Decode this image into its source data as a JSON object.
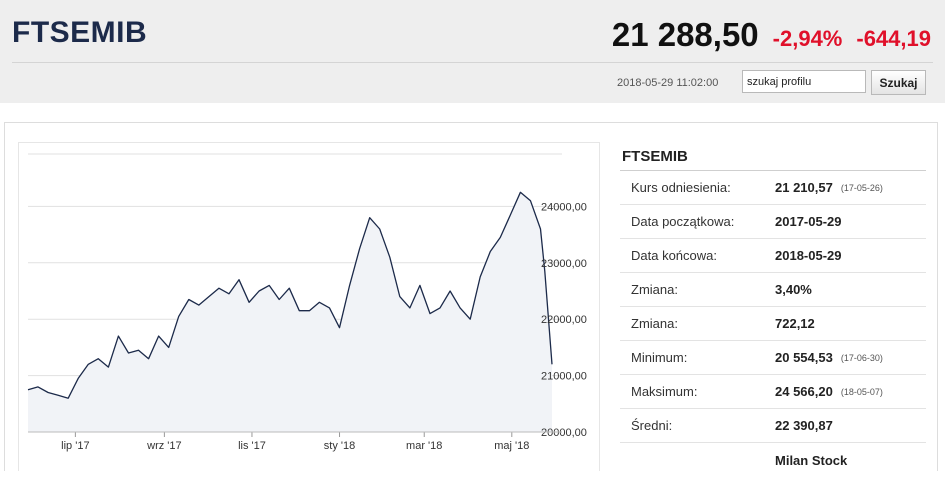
{
  "header": {
    "symbol": "FTSEMIB",
    "price": "21 288,50",
    "change_pct": "-2,94%",
    "change_abs": "-644,19",
    "timestamp": "2018-05-29 11:02:00",
    "search_value": "szukaj profilu",
    "search_button": "Szukaj"
  },
  "panel": {
    "title": "FTSEMIB",
    "rows": [
      {
        "label": "Kurs odniesienia:",
        "value": "21 210,57",
        "date": "(17-05-26)"
      },
      {
        "label": "Data początkowa:",
        "value": "2017-05-29",
        "date": ""
      },
      {
        "label": "Data końcowa:",
        "value": "2018-05-29",
        "date": ""
      },
      {
        "label": "Zmiana:",
        "value": "3,40%",
        "date": ""
      },
      {
        "label": "Zmiana:",
        "value": "722,12",
        "date": ""
      },
      {
        "label": "Minimum:",
        "value": "20 554,53",
        "date": "(17-06-30)"
      },
      {
        "label": "Maksimum:",
        "value": "24 566,20",
        "date": "(18-05-07)"
      },
      {
        "label": "Średni:",
        "value": "22 390,87",
        "date": ""
      },
      {
        "label": "",
        "value": "Milan Stock",
        "date": ""
      }
    ]
  },
  "colors": {
    "accent_title": "#1c2a4a",
    "negative": "#e0102a",
    "line": "#1c2a4a",
    "fill": "#f1f3f7"
  },
  "chart_data": {
    "type": "area",
    "ylim": [
      20000,
      25000
    ],
    "y_ticks": [
      20000,
      21000,
      22000,
      23000,
      24000
    ],
    "y_tick_labels": [
      "20000,00",
      "21000,00",
      "22000,00",
      "23000,00",
      "24000,00"
    ],
    "x_tick_labels": [
      "lip '17",
      "wrz '17",
      "lis '17",
      "sty '18",
      "mar '18",
      "maj '18"
    ],
    "x_tick_dates": [
      "2017-07-01",
      "2017-09-01",
      "2017-11-01",
      "2018-01-01",
      "2018-03-01",
      "2018-05-01"
    ],
    "x_range": [
      "2017-05-29",
      "2018-05-29"
    ],
    "grid": true,
    "series": [
      {
        "x": [
          "2017-05-29",
          "2017-06-05",
          "2017-06-12",
          "2017-06-19",
          "2017-06-26",
          "2017-07-03",
          "2017-07-10",
          "2017-07-17",
          "2017-07-24",
          "2017-07-31",
          "2017-08-07",
          "2017-08-14",
          "2017-08-21",
          "2017-08-28",
          "2017-09-04",
          "2017-09-11",
          "2017-09-18",
          "2017-09-25",
          "2017-10-02",
          "2017-10-09",
          "2017-10-16",
          "2017-10-23",
          "2017-10-30",
          "2017-11-06",
          "2017-11-13",
          "2017-11-20",
          "2017-11-27",
          "2017-12-04",
          "2017-12-11",
          "2017-12-18",
          "2017-12-25",
          "2018-01-01",
          "2018-01-08",
          "2018-01-15",
          "2018-01-22",
          "2018-01-29",
          "2018-02-05",
          "2018-02-12",
          "2018-02-19",
          "2018-02-26",
          "2018-03-05",
          "2018-03-12",
          "2018-03-19",
          "2018-03-26",
          "2018-04-02",
          "2018-04-09",
          "2018-04-16",
          "2018-04-23",
          "2018-04-30",
          "2018-05-07",
          "2018-05-14",
          "2018-05-21",
          "2018-05-24",
          "2018-05-29"
        ],
        "y": [
          20750,
          20800,
          20700,
          20650,
          20600,
          20950,
          21200,
          21300,
          21150,
          21700,
          21400,
          21450,
          21300,
          21700,
          21500,
          22050,
          22350,
          22250,
          22400,
          22550,
          22450,
          22700,
          22300,
          22500,
          22600,
          22350,
          22550,
          22150,
          22150,
          22300,
          22200,
          21850,
          22600,
          23250,
          23800,
          23600,
          23100,
          22400,
          22200,
          22600,
          22100,
          22200,
          22500,
          22200,
          22000,
          22750,
          23200,
          23450,
          23850,
          24250,
          24100,
          23600,
          22850,
          21200
        ]
      }
    ]
  }
}
